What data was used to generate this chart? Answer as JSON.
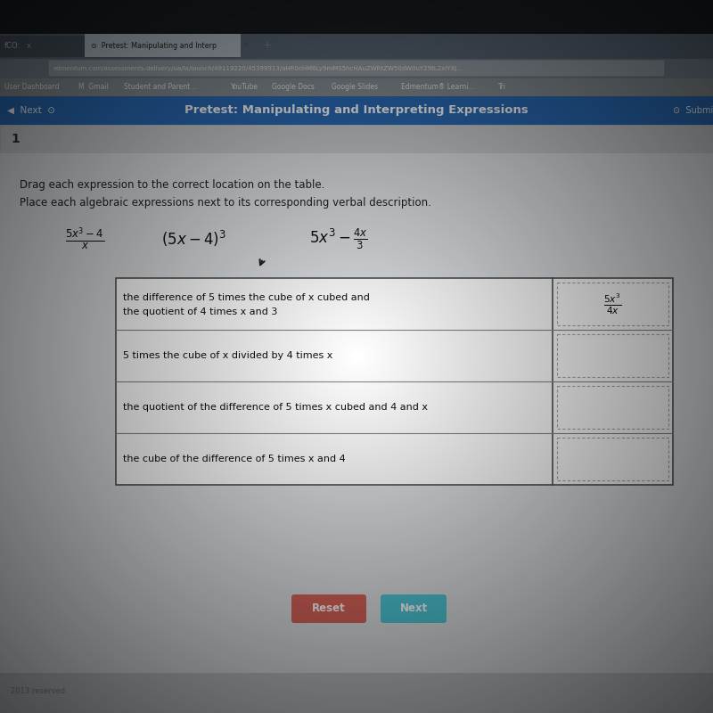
{
  "bg_top_color": "#0a0a0a",
  "screen_bg": "#c8c8c8",
  "tab_bar_color": "#6a7a8a",
  "tab_active_color": "#b0bac5",
  "url_bar_color": "#8a96a2",
  "bookmarks_bar_color": "#9aa4ae",
  "nav_bar_color": "#2e75c0",
  "content_bg": "#dce0e4",
  "question_strip_color": "#c8cdd2",
  "table_bg": "#ffffff",
  "nav_text": "Pretest: Manipulating and Interpreting Expressions",
  "url_text": "edmentum.com/assessments-delivery/ua/la/launch/49119220/45399913/aHR0cHM6Ly9mMS5hcHAuZWRtZW50dW0uY29tL2xlYXJ...",
  "bookmarks": [
    "User Dashboard",
    "M  Gmail",
    "Student and Parent...",
    "YouTube",
    "Google Docs",
    "Google Slides",
    "Edmentum® Learni...",
    "Tri"
  ],
  "question_num": "1",
  "instruction1": "Drag each expression to the correct location on the table.",
  "instruction2": "Place each algebraic expressions next to its corresponding verbal description.",
  "table_rows": [
    "the difference of 5 times the cube of x cubed and\nthe quotient of 4 times x and 3",
    "5 times the cube of x divided by 4 times x",
    "the quotient of the difference of 5 times x cubed and 4 and x",
    "the cube of the difference of 5 times x and 4"
  ],
  "placed_expression_top": "$\\frac{5x^3}{4x}$",
  "reset_btn_color": "#d9635a",
  "next_btn_color": "#4ec8d8",
  "reset_text": "Reset",
  "next_text": "Next",
  "footer_text": "2013 reserved.",
  "vignette_strength": 0.55
}
